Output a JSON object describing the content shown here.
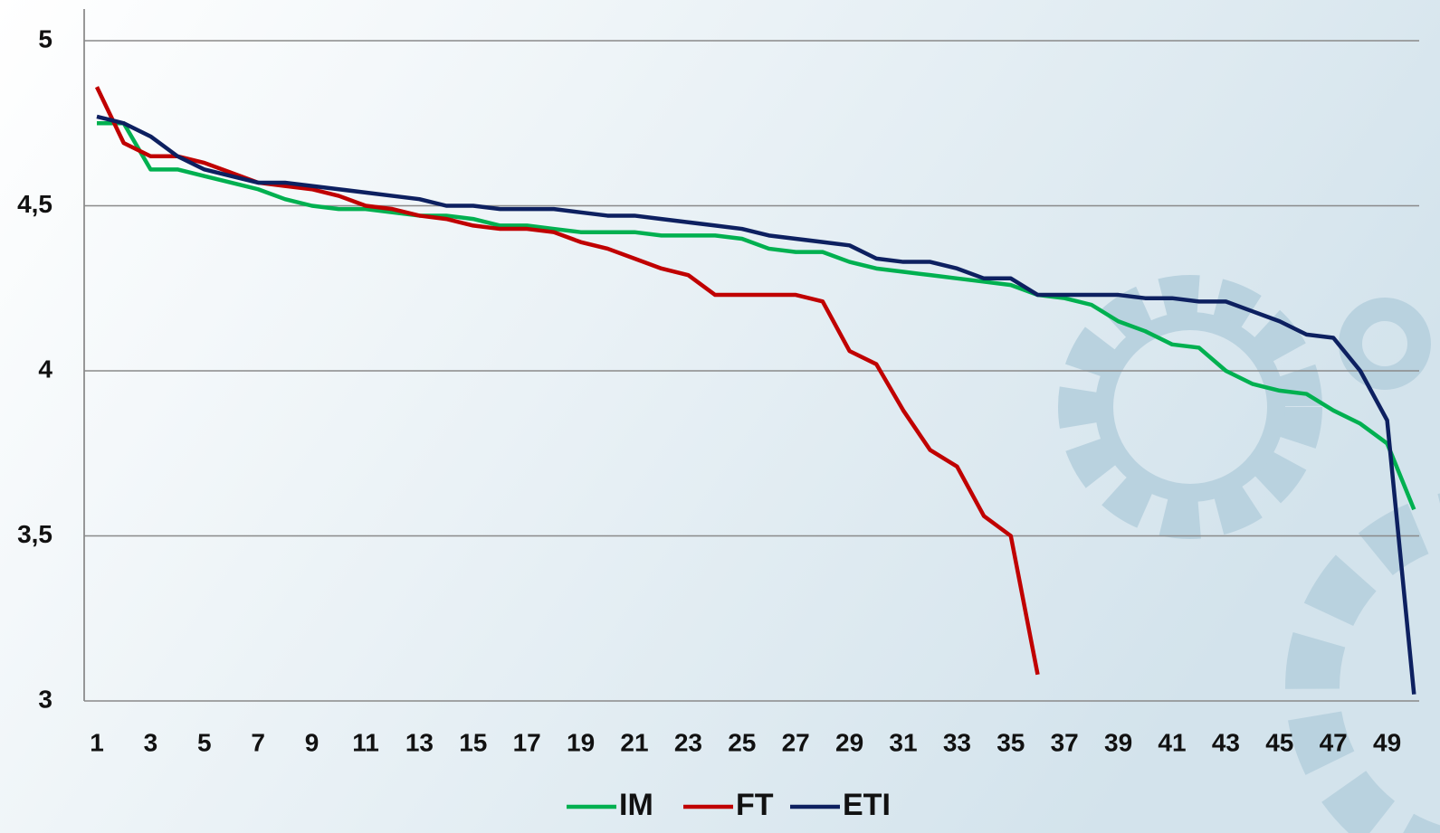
{
  "chart_data": {
    "type": "line",
    "categories": [
      "1",
      null,
      "3",
      null,
      "5",
      null,
      "7",
      null,
      "9",
      null,
      "11",
      null,
      "13",
      null,
      "15",
      null,
      "17",
      null,
      "19",
      null,
      "21",
      null,
      "23",
      null,
      "25",
      null,
      "27",
      null,
      "29",
      null,
      "31",
      null,
      "33",
      null,
      "35",
      null,
      "37",
      null,
      "39",
      null,
      "41",
      null,
      "43",
      null,
      "45",
      null,
      "47",
      null,
      "49",
      null
    ],
    "series": [
      {
        "name": "IM",
        "color": "#00b050",
        "values": [
          4.75,
          4.75,
          4.61,
          4.61,
          4.59,
          4.57,
          4.55,
          4.52,
          4.5,
          4.49,
          4.49,
          4.48,
          4.47,
          4.47,
          4.46,
          4.44,
          4.44,
          4.43,
          4.42,
          4.42,
          4.42,
          4.41,
          4.41,
          4.41,
          4.4,
          4.37,
          4.36,
          4.36,
          4.33,
          4.31,
          4.3,
          4.29,
          4.28,
          4.27,
          4.26,
          4.23,
          4.22,
          4.2,
          4.15,
          4.12,
          4.08,
          4.07,
          4.0,
          3.96,
          3.94,
          3.93,
          3.88,
          3.84,
          3.78,
          3.58
        ]
      },
      {
        "name": "FT",
        "color": "#c00000",
        "values": [
          4.86,
          4.69,
          4.65,
          4.65,
          4.63,
          4.6,
          4.57,
          4.56,
          4.55,
          4.53,
          4.5,
          4.49,
          4.47,
          4.46,
          4.44,
          4.43,
          4.43,
          4.42,
          4.39,
          4.37,
          4.34,
          4.31,
          4.29,
          4.23,
          4.23,
          4.23,
          4.23,
          4.21,
          4.06,
          4.02,
          3.88,
          3.76,
          3.71,
          3.56,
          3.5,
          3.08,
          null,
          null,
          null,
          null,
          null,
          null,
          null,
          null,
          null,
          null,
          null,
          null,
          null,
          null
        ]
      },
      {
        "name": "ETI",
        "color": "#0d2060",
        "values": [
          4.77,
          4.75,
          4.71,
          4.65,
          4.61,
          4.59,
          4.57,
          4.57,
          4.56,
          4.55,
          4.54,
          4.53,
          4.52,
          4.5,
          4.5,
          4.49,
          4.49,
          4.49,
          4.48,
          4.47,
          4.47,
          4.46,
          4.45,
          4.44,
          4.43,
          4.41,
          4.4,
          4.39,
          4.38,
          4.34,
          4.33,
          4.33,
          4.31,
          4.28,
          4.28,
          4.23,
          4.23,
          4.23,
          4.23,
          4.22,
          4.22,
          4.21,
          4.21,
          4.18,
          4.15,
          4.11,
          4.1,
          4.0,
          3.85,
          3.02
        ]
      }
    ],
    "ylim": [
      3,
      5
    ],
    "yticks": [
      3,
      {
        "value": 3.5,
        "label": "3,5"
      },
      4,
      {
        "value": 4.5,
        "label": "4,5"
      },
      5
    ],
    "grid": true,
    "legend": "bottom"
  }
}
